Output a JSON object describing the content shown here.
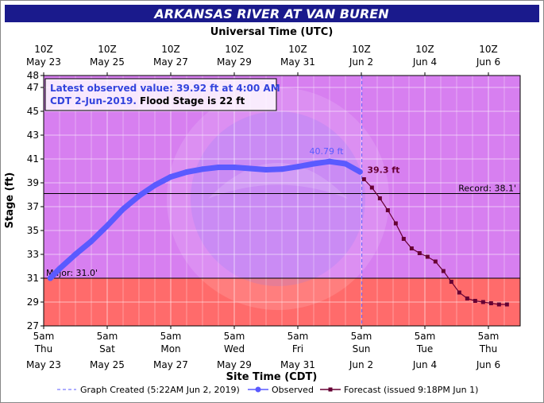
{
  "chart_data": {
    "type": "line",
    "title": "ARKANSAS RIVER AT VAN BUREN",
    "top_axis_title": "Universal Time (UTC)",
    "top_ticks": [
      {
        "time": "10Z",
        "date": "May 23"
      },
      {
        "time": "10Z",
        "date": "May 25"
      },
      {
        "time": "10Z",
        "date": "May 27"
      },
      {
        "time": "10Z",
        "date": "May 29"
      },
      {
        "time": "10Z",
        "date": "May 31"
      },
      {
        "time": "10Z",
        "date": "Jun 2"
      },
      {
        "time": "10Z",
        "date": "Jun 4"
      },
      {
        "time": "10Z",
        "date": "Jun 6"
      }
    ],
    "bottom_ticks": [
      {
        "time": "5am",
        "day": "Thu",
        "date": "May 23"
      },
      {
        "time": "5am",
        "day": "Sat",
        "date": "May 25"
      },
      {
        "time": "5am",
        "day": "Mon",
        "date": "May 27"
      },
      {
        "time": "5am",
        "day": "Wed",
        "date": "May 29"
      },
      {
        "time": "5am",
        "day": "Fri",
        "date": "May 31"
      },
      {
        "time": "5am",
        "day": "Sun",
        "date": "Jun 2"
      },
      {
        "time": "5am",
        "day": "Tue",
        "date": "Jun 4"
      },
      {
        "time": "5am",
        "day": "Thu",
        "date": "Jun 6"
      }
    ],
    "xlabel": "Site Time (CDT)",
    "ylabel": "Stage (ft)",
    "ylim": [
      27,
      48
    ],
    "y_ticks": [
      27,
      29,
      31,
      33,
      35,
      37,
      39,
      41,
      43,
      45,
      47,
      48
    ],
    "x_range_days": [
      "2019-05-23 05:00",
      "2019-06-07 05:00"
    ],
    "grid": true,
    "major_flood_stage": 31.0,
    "major_label": "Major: 31.0'",
    "record_stage": 38.1,
    "record_label": "Record: 38.1'",
    "colors": {
      "title_bg": "#1a1a8c",
      "major_band": "#ff6b6b",
      "above_band": "#d77ff0",
      "observed": "#5a5aff",
      "forecast": "#660033",
      "plot_border": "#000000"
    },
    "info_box": {
      "line1": "Latest observed value: 39.92 ft at 4:00 AM",
      "line2_blue": "CDT 2-Jun-2019.",
      "line2_black": "Flood Stage is 22 ft"
    },
    "annotations": {
      "observed_peak": "40.79 ft",
      "forecast_peak": "39.3 ft"
    },
    "series": [
      {
        "name": "Observed",
        "x": [
          "2019-05-23 10:00",
          "2019-05-23 17:00",
          "2019-05-24 05:00",
          "2019-05-24 17:00",
          "2019-05-25 05:00",
          "2019-05-25 17:00",
          "2019-05-26 05:00",
          "2019-05-26 17:00",
          "2019-05-27 05:00",
          "2019-05-27 17:00",
          "2019-05-28 05:00",
          "2019-05-28 17:00",
          "2019-05-29 05:00",
          "2019-05-29 17:00",
          "2019-05-30 05:00",
          "2019-05-30 17:00",
          "2019-05-31 05:00",
          "2019-05-31 17:00",
          "2019-06-01 05:00",
          "2019-06-01 17:00",
          "2019-06-02 04:00"
        ],
        "y": [
          31.0,
          31.8,
          33.0,
          34.1,
          35.4,
          36.8,
          37.9,
          38.8,
          39.5,
          39.9,
          40.15,
          40.3,
          40.3,
          40.2,
          40.1,
          40.15,
          40.35,
          40.6,
          40.79,
          40.6,
          39.92
        ]
      },
      {
        "name": "Forecast (issued 9:18PM Jun 1)",
        "x": [
          "2019-06-02 07:00",
          "2019-06-02 13:00",
          "2019-06-02 19:00",
          "2019-06-03 01:00",
          "2019-06-03 07:00",
          "2019-06-03 13:00",
          "2019-06-03 19:00",
          "2019-06-04 01:00",
          "2019-06-04 07:00",
          "2019-06-04 13:00",
          "2019-06-04 19:00",
          "2019-06-05 01:00",
          "2019-06-05 07:00",
          "2019-06-05 13:00",
          "2019-06-05 19:00",
          "2019-06-06 01:00",
          "2019-06-06 07:00",
          "2019-06-06 13:00",
          "2019-06-06 19:00"
        ],
        "y": [
          39.3,
          38.6,
          37.7,
          36.7,
          35.6,
          34.3,
          33.5,
          33.1,
          32.8,
          32.4,
          31.6,
          30.7,
          29.8,
          29.3,
          29.1,
          29.0,
          28.9,
          28.8,
          28.8
        ]
      }
    ],
    "legend": {
      "graph_created": "Graph Created (5:22AM Jun 2, 2019)",
      "observed": "Observed",
      "forecast": "Forecast (issued 9:18PM Jun 1)"
    },
    "graph_created_time": "2019-06-02 05:22"
  }
}
